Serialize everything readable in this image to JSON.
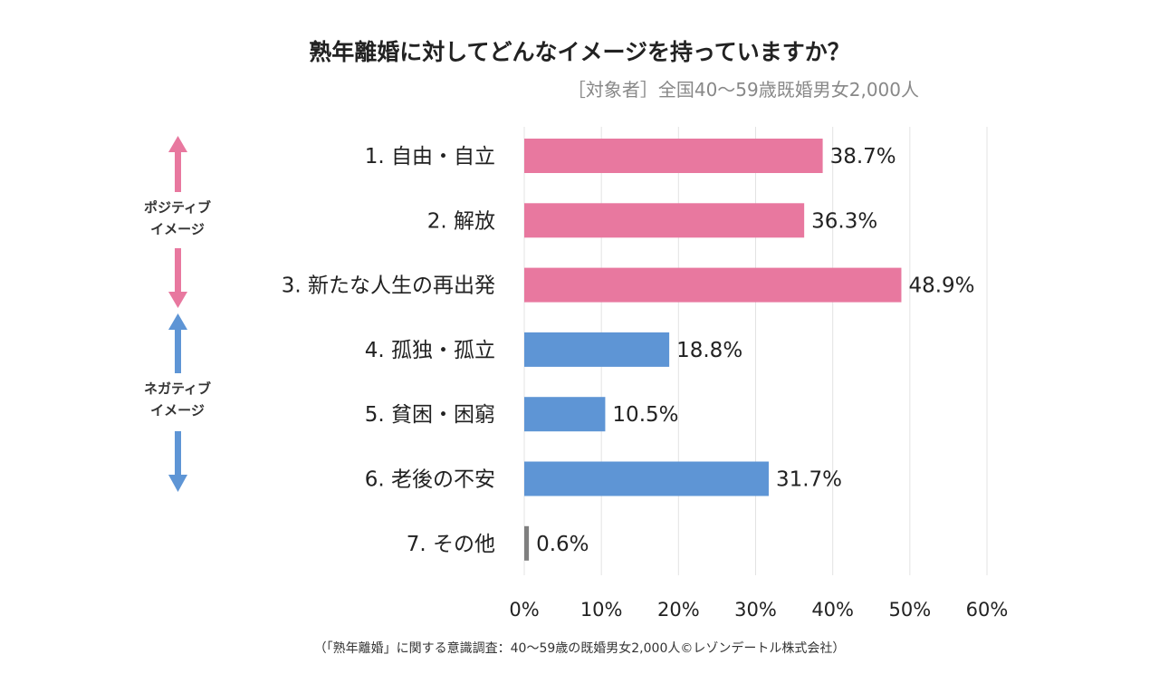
{
  "chart_data": {
    "type": "bar",
    "orientation": "horizontal",
    "title": "熟年離婚に対してどんなイメージを持っていますか？",
    "subtitle": "［対象者］全国40～59歳既婚男女2,000人",
    "categories": [
      "1. 自由・自立",
      "2. 解放",
      "3. 新たな人生の再出発",
      "4. 孤独・孤立",
      "5. 貧困・困窮",
      "6. 老後の不安",
      "7. その他"
    ],
    "values": [
      38.7,
      36.3,
      48.9,
      18.8,
      10.5,
      31.7,
      0.6
    ],
    "data_labels": [
      "38.7%",
      "36.3%",
      "48.9%",
      "18.8%",
      "10.5%",
      "31.7%",
      "0.6%"
    ],
    "bar_colors": [
      "#E8789F",
      "#E8789F",
      "#E8789F",
      "#5E95D5",
      "#5E95D5",
      "#5E95D5",
      "#7F7F7F"
    ],
    "xlim": [
      0,
      60
    ],
    "xticks": [
      "0%",
      "10%",
      "20%",
      "30%",
      "40%",
      "50%",
      "60%"
    ],
    "grid": true,
    "groups": [
      {
        "label_line1": "ポジティブ",
        "label_line2": "イメージ",
        "color": "#E8789F"
      },
      {
        "label_line1": "ネガティブ",
        "label_line2": "イメージ",
        "color": "#5E95D5"
      }
    ],
    "source": "（「熟年離婚」に関する意識調査：40～59歳の既婚男女2,000人©レゾンデートル株式会社）"
  }
}
